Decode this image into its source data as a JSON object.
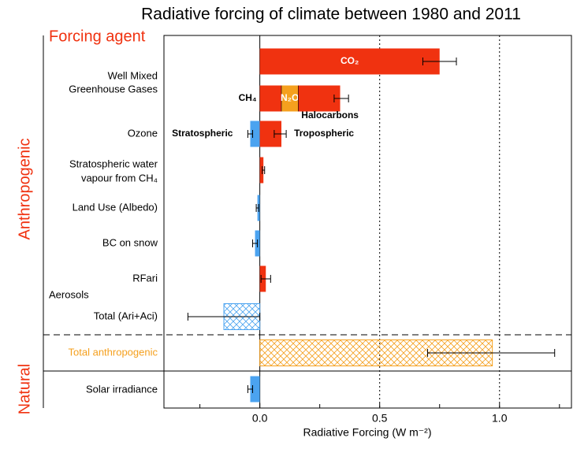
{
  "chart_data": {
    "type": "hbar",
    "title": "Radiative forcing of climate between 1980 and 2011",
    "header": "Forcing agent",
    "groups": [
      "Anthropogenic",
      "Natural"
    ],
    "xlabel": "Radiative Forcing (W m⁻²)",
    "xlim": [
      -0.4,
      1.3
    ],
    "xticks": [
      {
        "value": 0,
        "label": "0.0"
      },
      {
        "value": 0.5,
        "label": "0.5"
      },
      {
        "value": 1,
        "label": "1.0"
      }
    ],
    "xminorticks": [
      -0.25,
      0.25,
      0.75,
      1.25
    ],
    "row_labels": [
      [
        "Well Mixed",
        "Greenhouse Gases"
      ],
      [
        "Ozone"
      ],
      [
        "Stratospheric water",
        "vapour from CH₄"
      ],
      [
        "Land Use (Albedo)"
      ],
      [
        "BC on snow"
      ],
      [
        "RFari"
      ],
      [
        "Aerosols"
      ],
      [
        "Total (Ari+Aci)"
      ],
      [
        "Total anthropogenic"
      ],
      [
        "Solar irradiance"
      ]
    ],
    "bars": [
      {
        "segments": [
          {
            "name": "CO₂",
            "value": 0.75,
            "color": "#f03210"
          }
        ],
        "range": [
          0.68,
          0.82
        ]
      },
      {
        "segments": [
          {
            "name": "CH₄",
            "value": 0.09,
            "color": "#f03210"
          },
          {
            "name": "N₂O",
            "value": 0.07,
            "color": "#f5a01e"
          },
          {
            "name": "Halocarbons",
            "value": 0.175,
            "color": "#f03210"
          }
        ],
        "range": [
          0.31,
          0.37
        ]
      },
      {
        "segments": [
          {
            "name": "Stratospheric",
            "value": -0.04,
            "color": "#4ba3f0",
            "range": [
              -0.05,
              -0.03
            ]
          },
          {
            "name": "Tropospheric",
            "value": 0.09,
            "color": "#f03210",
            "range": [
              0.06,
              0.11
            ]
          }
        ]
      },
      {
        "segments": [
          {
            "value": 0.015,
            "color": "#f03210"
          }
        ],
        "range": [
          0.01,
          0.02
        ]
      },
      {
        "segments": [
          {
            "value": -0.01,
            "color": "#4ba3f0"
          }
        ],
        "range": [
          -0.015,
          -0.005
        ]
      },
      {
        "segments": [
          {
            "value": -0.02,
            "color": "#4ba3f0"
          }
        ],
        "range": [
          -0.03,
          -0.01
        ]
      },
      {
        "segments": [
          {
            "value": 0.025,
            "color": "#f03210"
          }
        ],
        "range": [
          0.005,
          0.045
        ]
      },
      {
        "segments": [
          {
            "value": -0.15,
            "color": "#4ba3f0"
          }
        ],
        "range": [
          -0.3,
          0
        ],
        "hatch": true
      },
      {
        "segments": [
          {
            "value": 0.97,
            "color": "#f5a01e"
          }
        ],
        "range": [
          0.7,
          1.23
        ],
        "hatch": true
      },
      {
        "segments": [
          {
            "value": -0.04,
            "color": "#4ba3f0"
          }
        ],
        "range": [
          -0.05,
          -0.03
        ]
      }
    ]
  }
}
